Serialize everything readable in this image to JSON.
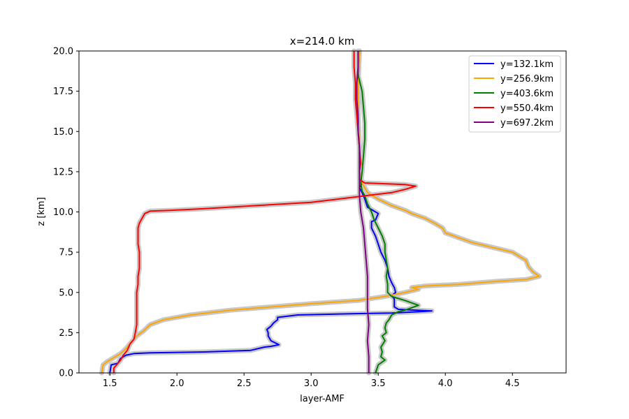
{
  "chart_data": {
    "type": "line",
    "title": "x=214.0 km",
    "xlabel": "layer-AMF",
    "ylabel": "z [km]",
    "xlim": [
      1.27,
      4.9
    ],
    "ylim": [
      0.0,
      20.0
    ],
    "xticks": [
      1.5,
      2.0,
      2.5,
      3.0,
      3.5,
      4.0,
      4.5
    ],
    "xtick_labels": [
      "1.5",
      "2.0",
      "2.5",
      "3.0",
      "3.5",
      "4.0",
      "4.5"
    ],
    "yticks": [
      0.0,
      2.5,
      5.0,
      7.5,
      10.0,
      12.5,
      15.0,
      17.5,
      20.0
    ],
    "ytick_labels": [
      "0.0",
      "2.5",
      "5.0",
      "7.5",
      "10.0",
      "12.5",
      "15.0",
      "17.5",
      "20.0"
    ],
    "grid": false,
    "legend_position": "top-right",
    "uncertainty_band_color": "#c8c8c8",
    "series": [
      {
        "name": "y=132.1km",
        "color": "#0000ff",
        "points": [
          [
            1.5,
            0.0
          ],
          [
            1.51,
            0.5
          ],
          [
            1.56,
            0.6
          ],
          [
            1.58,
            0.9
          ],
          [
            1.62,
            1.1
          ],
          [
            1.68,
            1.2
          ],
          [
            1.8,
            1.25
          ],
          [
            2.2,
            1.3
          ],
          [
            2.55,
            1.4
          ],
          [
            2.65,
            1.6
          ],
          [
            2.7,
            1.65
          ],
          [
            2.76,
            1.75
          ],
          [
            2.7,
            2.0
          ],
          [
            2.68,
            2.3
          ],
          [
            2.68,
            2.5
          ],
          [
            2.67,
            2.7
          ],
          [
            2.7,
            2.9
          ],
          [
            2.72,
            3.1
          ],
          [
            2.75,
            3.3
          ],
          [
            2.75,
            3.45
          ],
          [
            2.9,
            3.6
          ],
          [
            3.3,
            3.68
          ],
          [
            3.6,
            3.72
          ],
          [
            3.8,
            3.8
          ],
          [
            3.9,
            3.85
          ],
          [
            3.65,
            3.95
          ],
          [
            3.62,
            4.1
          ],
          [
            3.62,
            4.4
          ],
          [
            3.62,
            4.6
          ],
          [
            3.6,
            4.8
          ],
          [
            3.63,
            5.0
          ],
          [
            3.62,
            5.3
          ],
          [
            3.6,
            5.6
          ],
          [
            3.58,
            6.0
          ],
          [
            3.57,
            6.5
          ],
          [
            3.55,
            7.0
          ],
          [
            3.52,
            7.5
          ],
          [
            3.5,
            8.0
          ],
          [
            3.48,
            8.5
          ],
          [
            3.45,
            9.0
          ],
          [
            3.45,
            9.4
          ],
          [
            3.48,
            9.5
          ],
          [
            3.5,
            9.9
          ],
          [
            3.42,
            10.3
          ],
          [
            3.4,
            10.8
          ],
          [
            3.38,
            11.2
          ],
          [
            3.36,
            11.5
          ],
          [
            3.38,
            11.8
          ],
          [
            3.36,
            12.5
          ],
          [
            3.36,
            14.0
          ],
          [
            3.35,
            16.0
          ],
          [
            3.35,
            18.0
          ],
          [
            3.36,
            20.0
          ]
        ]
      },
      {
        "name": "y=256.9km",
        "color": "#ffa500",
        "points": [
          [
            1.44,
            0.0
          ],
          [
            1.45,
            0.5
          ],
          [
            1.48,
            0.7
          ],
          [
            1.52,
            0.9
          ],
          [
            1.58,
            1.2
          ],
          [
            1.62,
            1.5
          ],
          [
            1.66,
            1.9
          ],
          [
            1.7,
            2.3
          ],
          [
            1.75,
            2.6
          ],
          [
            1.8,
            3.0
          ],
          [
            1.9,
            3.3
          ],
          [
            2.1,
            3.6
          ],
          [
            2.4,
            3.9
          ],
          [
            2.7,
            4.1
          ],
          [
            3.0,
            4.3
          ],
          [
            3.35,
            4.5
          ],
          [
            3.55,
            4.75
          ],
          [
            3.7,
            5.0
          ],
          [
            3.8,
            5.2
          ],
          [
            3.75,
            5.3
          ],
          [
            3.85,
            5.4
          ],
          [
            4.1,
            5.5
          ],
          [
            4.4,
            5.7
          ],
          [
            4.6,
            5.8
          ],
          [
            4.7,
            6.0
          ],
          [
            4.65,
            6.3
          ],
          [
            4.62,
            6.6
          ],
          [
            4.6,
            7.0
          ],
          [
            4.5,
            7.5
          ],
          [
            4.35,
            7.8
          ],
          [
            4.2,
            8.1
          ],
          [
            4.1,
            8.4
          ],
          [
            4.0,
            8.7
          ],
          [
            3.98,
            9.0
          ],
          [
            3.92,
            9.3
          ],
          [
            3.85,
            9.6
          ],
          [
            3.75,
            9.9
          ],
          [
            3.7,
            10.1
          ],
          [
            3.6,
            10.4
          ],
          [
            3.5,
            10.8
          ],
          [
            3.42,
            11.2
          ],
          [
            3.38,
            11.8
          ],
          [
            3.36,
            12.5
          ],
          [
            3.36,
            14.0
          ],
          [
            3.35,
            16.0
          ],
          [
            3.35,
            18.0
          ],
          [
            3.36,
            20.0
          ]
        ]
      },
      {
        "name": "y=403.6km",
        "color": "#008000",
        "points": [
          [
            3.48,
            0.0
          ],
          [
            3.5,
            0.5
          ],
          [
            3.55,
            0.8
          ],
          [
            3.52,
            1.0
          ],
          [
            3.53,
            1.3
          ],
          [
            3.52,
            1.6
          ],
          [
            3.55,
            2.0
          ],
          [
            3.53,
            2.3
          ],
          [
            3.56,
            2.5
          ],
          [
            3.55,
            2.8
          ],
          [
            3.56,
            3.1
          ],
          [
            3.58,
            3.3
          ],
          [
            3.6,
            3.6
          ],
          [
            3.65,
            3.8
          ],
          [
            3.7,
            3.9
          ],
          [
            3.8,
            4.2
          ],
          [
            3.7,
            4.5
          ],
          [
            3.6,
            4.75
          ],
          [
            3.57,
            5.0
          ],
          [
            3.57,
            5.5
          ],
          [
            3.56,
            6.0
          ],
          [
            3.57,
            6.5
          ],
          [
            3.56,
            7.0
          ],
          [
            3.55,
            7.5
          ],
          [
            3.55,
            8.0
          ],
          [
            3.53,
            8.5
          ],
          [
            3.5,
            9.0
          ],
          [
            3.47,
            9.5
          ],
          [
            3.45,
            10.0
          ],
          [
            3.42,
            10.5
          ],
          [
            3.4,
            11.0
          ],
          [
            3.38,
            11.3
          ],
          [
            3.37,
            11.8
          ],
          [
            3.38,
            12.5
          ],
          [
            3.39,
            13.5
          ],
          [
            3.4,
            14.5
          ],
          [
            3.4,
            15.5
          ],
          [
            3.39,
            16.5
          ],
          [
            3.38,
            17.5
          ],
          [
            3.35,
            18.5
          ],
          [
            3.35,
            20.0
          ]
        ]
      },
      {
        "name": "y=550.4km",
        "color": "#ff0000",
        "points": [
          [
            1.53,
            0.0
          ],
          [
            1.53,
            0.3
          ],
          [
            1.55,
            0.5
          ],
          [
            1.58,
            0.8
          ],
          [
            1.6,
            1.1
          ],
          [
            1.63,
            1.4
          ],
          [
            1.65,
            1.8
          ],
          [
            1.68,
            2.1
          ],
          [
            1.69,
            2.5
          ],
          [
            1.7,
            3.0
          ],
          [
            1.7,
            3.5
          ],
          [
            1.7,
            4.0
          ],
          [
            1.7,
            4.5
          ],
          [
            1.7,
            5.0
          ],
          [
            1.71,
            5.5
          ],
          [
            1.71,
            6.0
          ],
          [
            1.72,
            6.5
          ],
          [
            1.72,
            7.0
          ],
          [
            1.72,
            7.5
          ],
          [
            1.71,
            8.0
          ],
          [
            1.71,
            8.5
          ],
          [
            1.71,
            9.0
          ],
          [
            1.72,
            9.3
          ],
          [
            1.74,
            9.6
          ],
          [
            1.76,
            9.9
          ],
          [
            1.8,
            10.05
          ],
          [
            1.95,
            10.1
          ],
          [
            2.2,
            10.2
          ],
          [
            2.6,
            10.4
          ],
          [
            3.0,
            10.6
          ],
          [
            3.2,
            10.8
          ],
          [
            3.4,
            11.0
          ],
          [
            3.6,
            11.2
          ],
          [
            3.7,
            11.4
          ],
          [
            3.78,
            11.6
          ],
          [
            3.7,
            11.7
          ],
          [
            3.4,
            11.8
          ],
          [
            3.36,
            12.0
          ],
          [
            3.36,
            12.5
          ],
          [
            3.37,
            13.0
          ],
          [
            3.36,
            14.0
          ],
          [
            3.35,
            15.0
          ],
          [
            3.34,
            16.0
          ],
          [
            3.33,
            17.0
          ],
          [
            3.33,
            18.0
          ],
          [
            3.32,
            19.0
          ],
          [
            3.32,
            20.0
          ]
        ]
      },
      {
        "name": "y=697.2km",
        "color": "#800080",
        "points": [
          [
            3.43,
            0.0
          ],
          [
            3.43,
            1.0
          ],
          [
            3.42,
            2.0
          ],
          [
            3.43,
            3.0
          ],
          [
            3.42,
            4.0
          ],
          [
            3.42,
            5.0
          ],
          [
            3.42,
            6.0
          ],
          [
            3.41,
            7.0
          ],
          [
            3.4,
            8.0
          ],
          [
            3.39,
            9.0
          ],
          [
            3.37,
            10.0
          ],
          [
            3.36,
            11.0
          ],
          [
            3.36,
            12.0
          ],
          [
            3.36,
            13.0
          ],
          [
            3.36,
            14.0
          ],
          [
            3.35,
            15.0
          ],
          [
            3.35,
            16.0
          ],
          [
            3.34,
            17.0
          ],
          [
            3.34,
            18.0
          ],
          [
            3.35,
            19.0
          ],
          [
            3.35,
            20.0
          ]
        ]
      }
    ]
  }
}
